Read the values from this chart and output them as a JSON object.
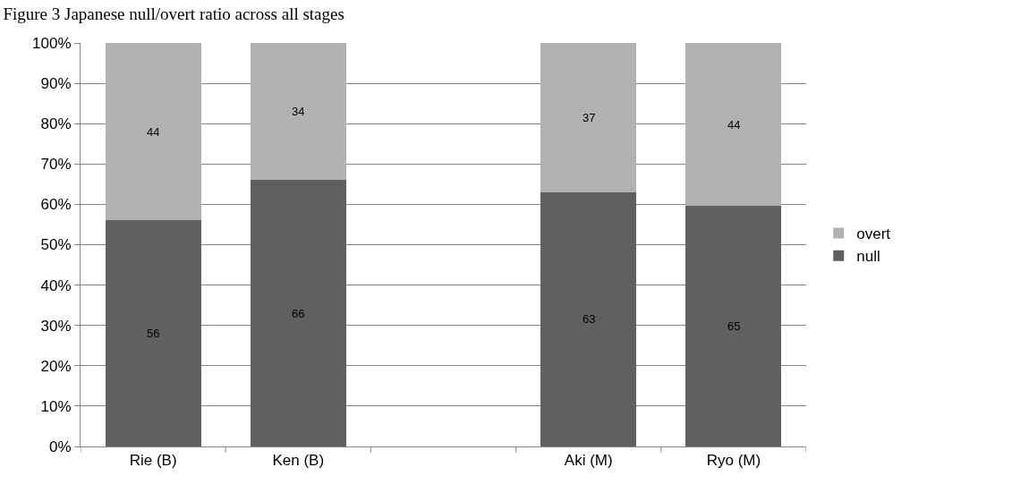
{
  "chart_data": {
    "type": "bar",
    "title": "Figure 3 Japanese null/overt ratio across all stages",
    "categories": [
      "Rie (B)",
      "Ken (B)",
      null,
      "Aki (M)",
      "Ryo (M)"
    ],
    "stacked": true,
    "series": [
      {
        "name": "null",
        "color": "#606060",
        "values": [
          56,
          66,
          null,
          63,
          59.6
        ]
      },
      {
        "name": "overt",
        "color": "#b2b2b2",
        "values": [
          44,
          34,
          null,
          37,
          40.4
        ]
      }
    ],
    "annotations": [
      "56",
      "66",
      "63",
      "65",
      "44",
      "34",
      "37",
      "44"
    ],
    "ylim": [
      0,
      100
    ],
    "yticks": [
      {
        "value": 0,
        "label": "0%"
      },
      {
        "value": 10,
        "label": "10%"
      },
      {
        "value": 20,
        "label": "20%"
      },
      {
        "value": 30,
        "label": "30%"
      },
      {
        "value": 40,
        "label": "40%"
      },
      {
        "value": 50,
        "label": "50%"
      },
      {
        "value": 60,
        "label": "60%"
      },
      {
        "value": 70,
        "label": "70%"
      },
      {
        "value": 80,
        "label": "80%"
      },
      {
        "value": 90,
        "label": "90%"
      },
      {
        "value": 100,
        "label": "100%"
      }
    ],
    "grid": "y",
    "legend": "right"
  }
}
